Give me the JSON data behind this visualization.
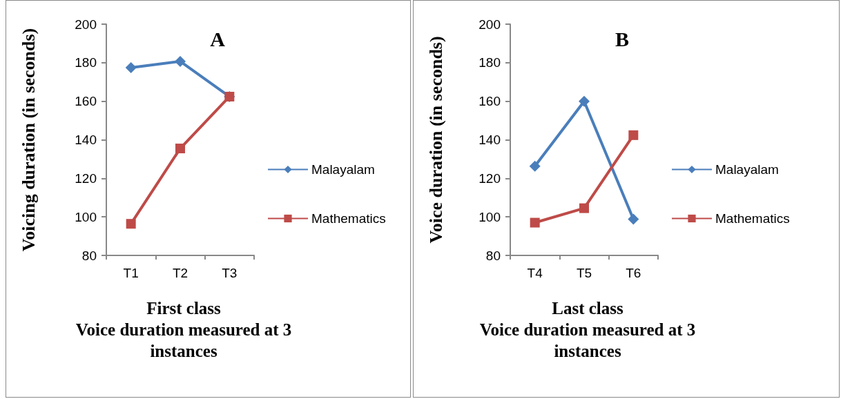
{
  "chart_data": [
    {
      "type": "line",
      "xlabel": "First class\nVoice duration measured at 3 instances",
      "ylabel": "Voicing duration (in seconds)",
      "categories": [
        "T1",
        "T2",
        "T3"
      ],
      "series": [
        {
          "name": "Malayalam",
          "color": "#4a7ebb",
          "marker": "diamond",
          "values": [
            177.4,
            180.7,
            162.4
          ]
        },
        {
          "name": "Mathematics",
          "color": "#be4b48",
          "marker": "square",
          "values": [
            96.4,
            135.5,
            162.4
          ]
        }
      ],
      "ylim": [
        80,
        200
      ],
      "yticks": [
        80,
        100,
        120,
        140,
        160,
        180,
        200
      ],
      "grid": false,
      "legend": "right",
      "annotations": [
        "A"
      ]
    },
    {
      "type": "line",
      "xlabel": "Last class\nVoice duration measured at 3 instances",
      "ylabel": "Voice duration (in seconds)",
      "categories": [
        "T4",
        "T5",
        "T6"
      ],
      "series": [
        {
          "name": "Malayalam",
          "color": "#4a7ebb",
          "marker": "diamond",
          "values": [
            126.3,
            160,
            98.8
          ]
        },
        {
          "name": "Mathematics",
          "color": "#be4b48",
          "marker": "square",
          "values": [
            97,
            104.5,
            142.4
          ]
        }
      ],
      "ylim": [
        80,
        200
      ],
      "yticks": [
        80,
        100,
        120,
        140,
        160,
        180,
        200
      ],
      "grid": false,
      "legend": "right",
      "annotations": [
        "B"
      ]
    }
  ]
}
